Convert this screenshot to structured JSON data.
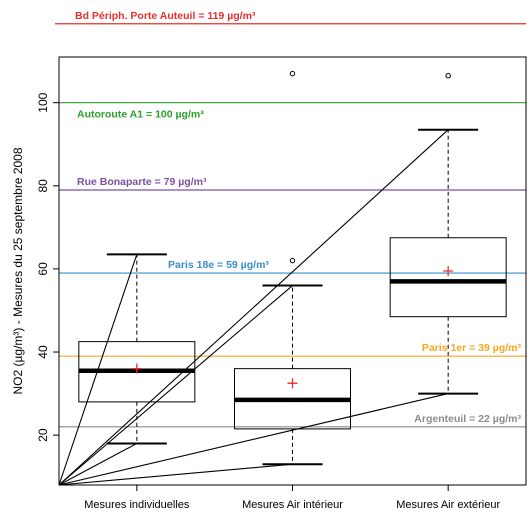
{
  "chart_data": {
    "type": "box",
    "ylabel": "NO2 (µg/m³) - Mesures du 25 septembre 2008",
    "ylim": [
      8,
      111
    ],
    "yticks": [
      20,
      40,
      60,
      80,
      100
    ],
    "categories": [
      "Mesures individuelles",
      "Mesures Air intérieur",
      "Mesures Air extérieur"
    ],
    "boxes": [
      {
        "category": "Mesures individuelles",
        "whisker_low": 18,
        "q1": 28,
        "median": 35.5,
        "q3": 42.5,
        "whisker_high": 63.5,
        "mean": 36,
        "outliers": []
      },
      {
        "category": "Mesures Air intérieur",
        "whisker_low": 13,
        "q1": 21.5,
        "median": 28.5,
        "q3": 36,
        "whisker_high": 56,
        "mean": 32.5,
        "outliers": [
          62,
          107
        ]
      },
      {
        "category": "Mesures Air extérieur",
        "whisker_low": 30,
        "q1": 48.5,
        "median": 57,
        "q3": 67.5,
        "whisker_high": 93.5,
        "mean": 59.5,
        "outliers": [
          106.5
        ]
      }
    ],
    "reference_lines": [
      {
        "label": "Bd Périph. Porte Auteuil = 119 µg/m³",
        "value": 119,
        "color": "#e8302c"
      },
      {
        "label": "Autoroute A1 = 100 µg/m³",
        "value": 100,
        "color": "#2ca02c"
      },
      {
        "label": "Rue Bonaparte = 79 µg/m³",
        "value": 79,
        "color": "#7b52a3"
      },
      {
        "label": "Paris 18e = 59 µg/m³",
        "value": 59,
        "color": "#3a8fc9"
      },
      {
        "label": "Paris 1er = 39 µg/m³",
        "value": 39,
        "color": "#f5a623"
      },
      {
        "label": "Argenteuil = 22 µg/m³",
        "value": 22,
        "color": "#8c8c8c"
      }
    ],
    "grid": false,
    "legend": "none"
  }
}
